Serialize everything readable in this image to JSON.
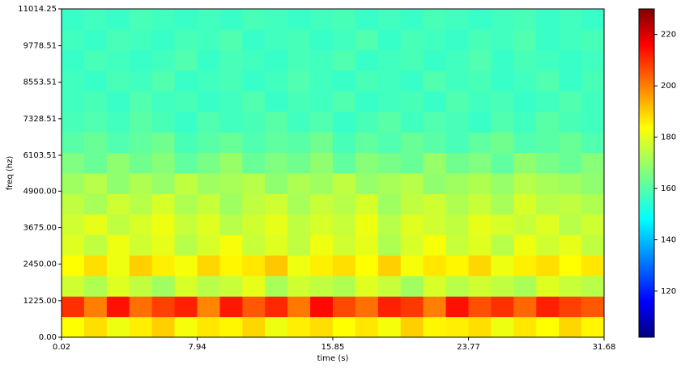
{
  "chart_data": {
    "type": "spectrogram",
    "x_label": "time (s)",
    "y_label": "freq (hz)",
    "xlim": [
      0.02,
      31.68
    ],
    "xticks": [
      0.02,
      7.94,
      15.85,
      23.77,
      31.68
    ],
    "ylim": [
      0,
      11014.25
    ],
    "yticks": [
      {
        "value": 0,
        "label": "0.00"
      },
      {
        "value": 1225,
        "label": "1225.00"
      },
      {
        "value": 2450,
        "label": "2450.00"
      },
      {
        "value": 3675,
        "label": "3675.00"
      },
      {
        "value": 4900,
        "label": "4900.00"
      },
      6103.51,
      7328.51,
      8553.51,
      9778.51,
      11014.25
    ],
    "colormap": "jet",
    "zlim": [
      102,
      230
    ],
    "zticks": [
      120,
      140,
      160,
      180,
      200,
      220
    ],
    "z": [
      [
        182,
        186,
        180,
        184,
        188,
        181,
        185,
        183,
        187,
        180,
        184,
        186,
        182,
        185,
        181,
        188,
        183,
        184,
        186,
        180,
        185,
        182,
        187,
        183
      ],
      [
        208,
        198,
        212,
        200,
        206,
        210,
        197,
        211,
        203,
        209,
        199,
        213,
        205,
        200,
        210,
        207,
        198,
        212,
        204,
        208,
        201,
        210,
        206,
        203
      ],
      [
        176,
        172,
        178,
        174,
        170,
        177,
        173,
        175,
        179,
        171,
        176,
        174,
        172,
        178,
        175,
        170,
        177,
        173,
        176,
        174,
        171,
        178,
        175,
        173
      ],
      [
        182,
        186,
        180,
        188,
        184,
        181,
        187,
        183,
        185,
        189,
        180,
        184,
        186,
        182,
        188,
        181,
        185,
        183,
        187,
        180,
        184,
        186,
        182,
        185
      ],
      [
        178,
        174,
        180,
        176,
        179,
        173,
        177,
        181,
        175,
        178,
        174,
        180,
        176,
        179,
        172,
        177,
        181,
        175,
        178,
        173,
        180,
        176,
        179,
        174
      ],
      [
        176,
        179,
        174,
        177,
        180,
        175,
        178,
        173,
        176,
        179,
        174,
        177,
        175,
        180,
        173,
        178,
        176,
        174,
        179,
        177,
        175,
        178,
        173,
        176
      ],
      [
        174,
        171,
        176,
        173,
        177,
        172,
        175,
        170,
        174,
        176,
        171,
        175,
        173,
        177,
        170,
        174,
        176,
        172,
        175,
        171,
        177,
        173,
        174,
        172
      ],
      [
        170,
        173,
        168,
        172,
        169,
        174,
        170,
        171,
        173,
        168,
        172,
        170,
        174,
        169,
        171,
        173,
        168,
        170,
        172,
        169,
        173,
        171,
        170,
        168
      ],
      [
        166,
        163,
        168,
        164,
        167,
        162,
        165,
        169,
        163,
        166,
        164,
        168,
        162,
        167,
        165,
        163,
        169,
        164,
        166,
        162,
        168,
        165,
        163,
        167
      ],
      [
        161,
        163,
        160,
        162,
        164,
        159,
        161,
        163,
        160,
        162,
        161,
        164,
        159,
        162,
        160,
        163,
        161,
        159,
        162,
        164,
        160,
        161,
        163,
        160
      ],
      [
        159,
        160,
        158,
        161,
        159,
        157,
        160,
        158,
        159,
        161,
        158,
        160,
        157,
        159,
        161,
        158,
        160,
        159,
        157,
        160,
        158,
        161,
        159,
        158
      ],
      [
        158,
        159,
        157,
        160,
        158,
        159,
        157,
        158,
        160,
        157,
        159,
        158,
        160,
        157,
        158,
        159,
        157,
        160,
        158,
        159,
        157,
        158,
        160,
        158
      ],
      [
        158,
        157,
        159,
        158,
        160,
        157,
        158,
        159,
        157,
        158,
        160,
        158,
        157,
        159,
        158,
        157,
        160,
        158,
        159,
        157,
        158,
        160,
        157,
        159
      ],
      [
        157,
        159,
        158,
        157,
        158,
        160,
        157,
        159,
        158,
        157,
        159,
        158,
        160,
        157,
        158,
        159,
        157,
        158,
        160,
        157,
        159,
        158,
        157,
        158
      ],
      [
        158,
        157,
        159,
        158,
        157,
        159,
        158,
        160,
        157,
        158,
        159,
        157,
        158,
        160,
        157,
        159,
        158,
        157,
        159,
        158,
        160,
        157,
        158,
        159
      ],
      [
        157,
        158,
        157,
        159,
        158,
        157,
        158,
        157,
        159,
        158,
        157,
        158,
        159,
        157,
        158,
        157,
        159,
        158,
        157,
        158,
        159,
        157,
        158,
        157
      ]
    ]
  }
}
